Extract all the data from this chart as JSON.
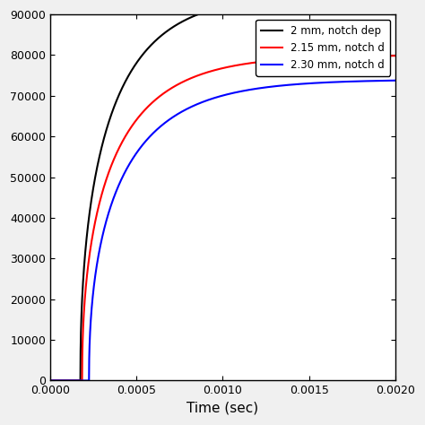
{
  "title": "",
  "xlabel": "Time (sec)",
  "ylabel": "",
  "xlim": [
    0.0,
    0.002
  ],
  "ylim": [
    0,
    90000
  ],
  "yticks": [
    0,
    10000,
    20000,
    30000,
    40000,
    50000,
    60000,
    70000,
    80000,
    90000
  ],
  "xticks": [
    0.0,
    0.0005,
    0.001,
    0.0015,
    0.002
  ],
  "lines": [
    {
      "label": "2 mm, notch dep",
      "color": "#000000",
      "A": 95000,
      "k": 3200,
      "x0": 0.000175,
      "power": 0.45
    },
    {
      "label": "2.15 mm, notch d",
      "color": "#ff0000",
      "A": 80000,
      "k": 3000,
      "x0": 0.000185,
      "power": 0.45
    },
    {
      "label": "2.30 mm, notch d",
      "color": "#0000ff",
      "A": 74000,
      "k": 2800,
      "x0": 0.000225,
      "power": 0.45
    }
  ],
  "legend_loc": "upper right",
  "background_color": "#ffffff",
  "figure_bgcolor": "#f0f0f0"
}
